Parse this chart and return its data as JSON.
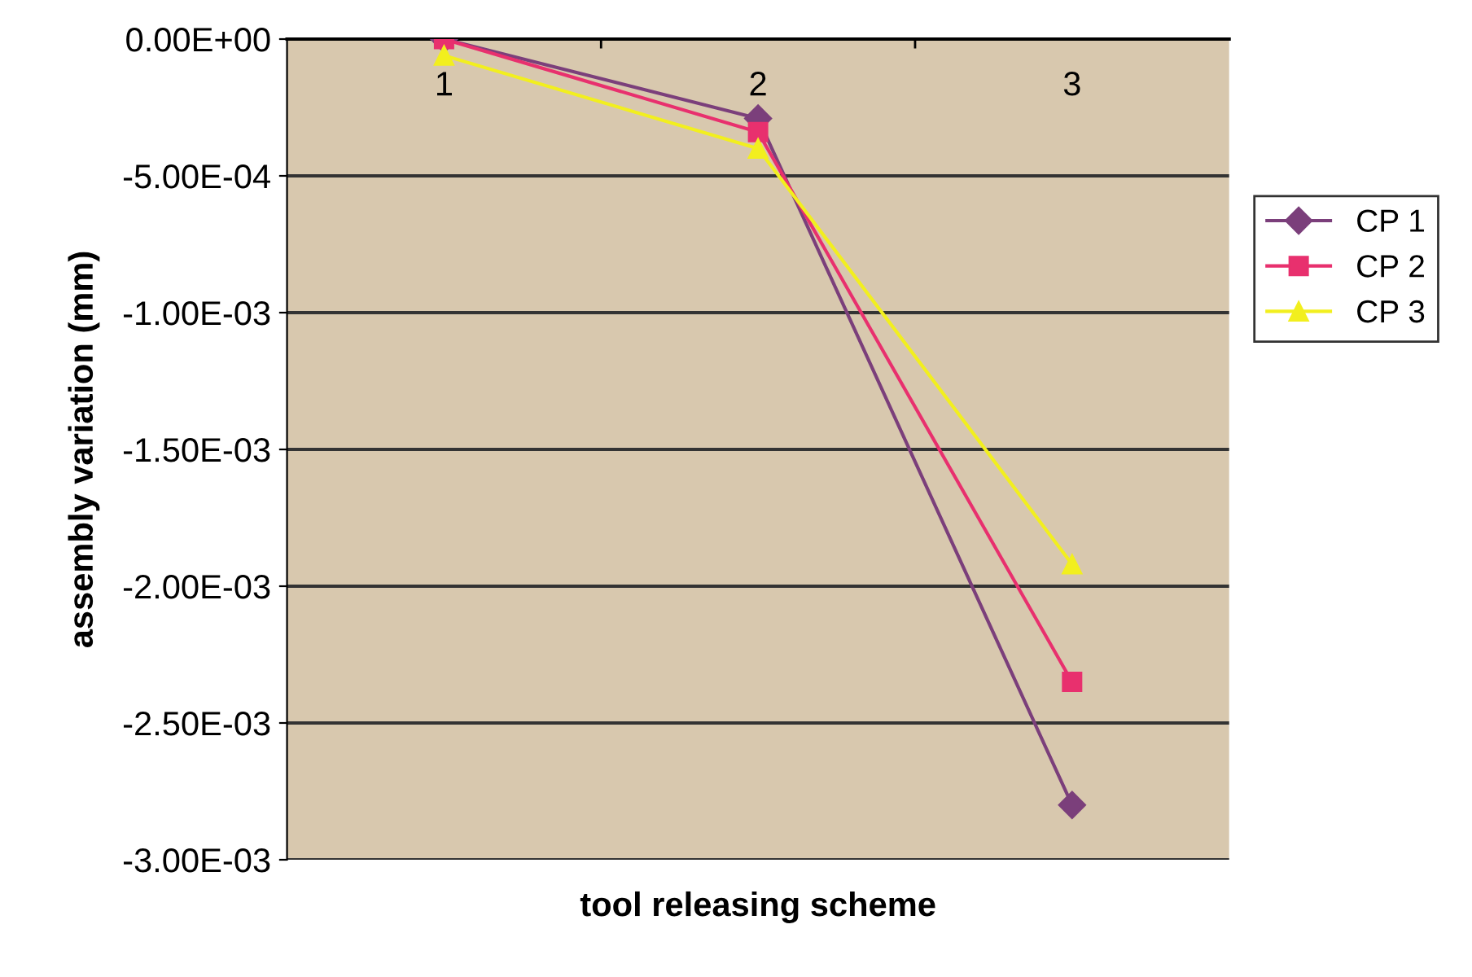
{
  "chart_data": {
    "type": "line",
    "xlabel": "tool releasing scheme",
    "ylabel": "assembly variation (mm)",
    "categories": [
      "1",
      "2",
      "3"
    ],
    "series": [
      {
        "name": "CP 1",
        "color": "#7b3f7b",
        "marker": "diamond",
        "values": [
          0,
          -0.00029,
          -0.0028
        ]
      },
      {
        "name": "CP 2",
        "color": "#e8306e",
        "marker": "square",
        "values": [
          0,
          -0.00034,
          -0.00235
        ]
      },
      {
        "name": "CP 3",
        "color": "#f2ef1e",
        "marker": "triangle",
        "values": [
          -6e-05,
          -0.0004,
          -0.00192
        ]
      }
    ],
    "ylim": [
      -0.003,
      0
    ],
    "yticks": [
      {
        "value": 0,
        "label": "0.00E+00"
      },
      {
        "value": -0.0005,
        "label": "-5.00E-04"
      },
      {
        "value": -0.001,
        "label": "-1.00E-03"
      },
      {
        "value": -0.0015,
        "label": "-1.50E-03"
      },
      {
        "value": -0.002,
        "label": "-2.00E-03"
      },
      {
        "value": -0.0025,
        "label": "-2.50E-03"
      },
      {
        "value": -0.003,
        "label": "-3.00E-03"
      }
    ],
    "grid": "y",
    "legend": "right",
    "line_style": "solid"
  }
}
